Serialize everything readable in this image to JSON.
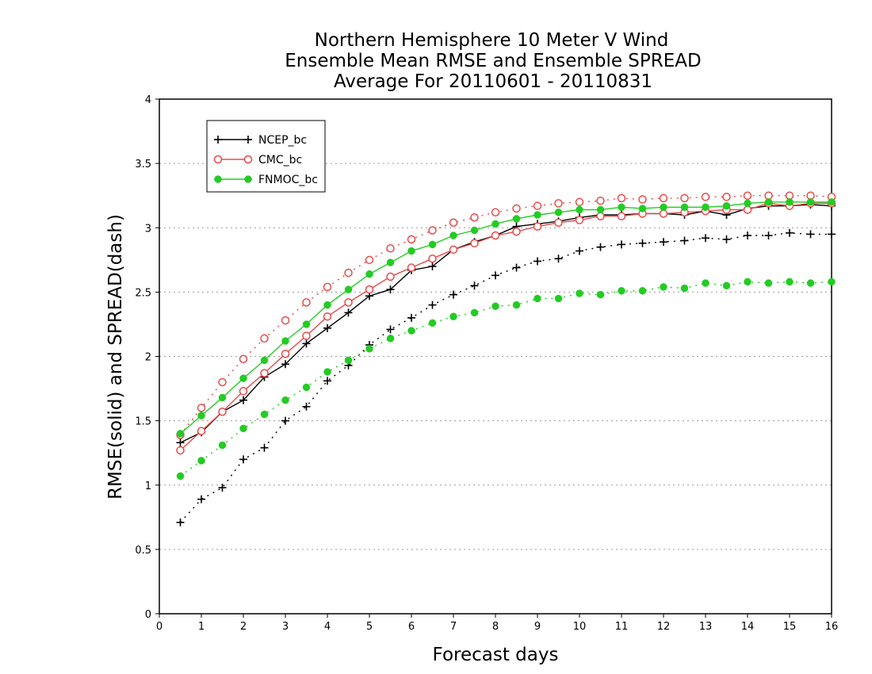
{
  "chart_data": {
    "type": "line",
    "title_lines": [
      "Northern Hemisphere 10 Meter V Wind",
      "Ensemble Mean RMSE and Ensemble SPREAD",
      "Average For 20110601 - 20110831"
    ],
    "xlabel": "Forecast days",
    "ylabel": "RMSE(solid) and SPREAD(dash)",
    "xlim": [
      0,
      16
    ],
    "ylim": [
      0,
      4
    ],
    "xticks": [
      0,
      1,
      2,
      3,
      4,
      5,
      6,
      7,
      8,
      9,
      10,
      11,
      12,
      13,
      14,
      15,
      16
    ],
    "yticks": [
      0,
      0.5,
      1,
      1.5,
      2,
      2.5,
      3,
      3.5,
      4
    ],
    "grid": "horizontal-dotted",
    "legend_position": "top-left",
    "x": [
      0.5,
      1,
      1.5,
      2,
      2.5,
      3,
      3.5,
      4,
      4.5,
      5,
      5.5,
      6,
      6.5,
      7,
      7.5,
      8,
      8.5,
      9,
      9.5,
      10,
      10.5,
      11,
      11.5,
      12,
      12.5,
      13,
      13.5,
      14,
      14.5,
      15,
      15.5,
      16
    ],
    "series": [
      {
        "name": "NCEP_bc",
        "color": "#000000",
        "marker": "plus",
        "rmse": [
          1.33,
          1.41,
          1.57,
          1.66,
          1.84,
          1.94,
          2.1,
          2.22,
          2.34,
          2.47,
          2.52,
          2.67,
          2.7,
          2.83,
          2.89,
          2.94,
          3.01,
          3.03,
          3.05,
          3.08,
          3.1,
          3.1,
          3.11,
          3.11,
          3.1,
          3.13,
          3.1,
          3.15,
          3.17,
          3.17,
          3.18,
          3.17
        ],
        "spread": [
          0.71,
          0.89,
          0.98,
          1.2,
          1.29,
          1.5,
          1.61,
          1.81,
          1.93,
          2.09,
          2.21,
          2.3,
          2.4,
          2.48,
          2.55,
          2.63,
          2.69,
          2.74,
          2.76,
          2.82,
          2.85,
          2.87,
          2.88,
          2.89,
          2.9,
          2.92,
          2.91,
          2.94,
          2.94,
          2.96,
          2.95,
          2.95
        ]
      },
      {
        "name": "CMC_bc",
        "color": "#e84a4a",
        "marker": "open-circle",
        "rmse": [
          1.27,
          1.42,
          1.57,
          1.73,
          1.87,
          2.02,
          2.16,
          2.31,
          2.42,
          2.52,
          2.62,
          2.69,
          2.76,
          2.83,
          2.88,
          2.94,
          2.97,
          3.01,
          3.04,
          3.06,
          3.09,
          3.09,
          3.11,
          3.11,
          3.12,
          3.13,
          3.14,
          3.14,
          3.19,
          3.17,
          3.19,
          3.19
        ],
        "spread": [
          1.39,
          1.6,
          1.8,
          1.98,
          2.14,
          2.28,
          2.42,
          2.54,
          2.65,
          2.75,
          2.84,
          2.91,
          2.98,
          3.04,
          3.08,
          3.12,
          3.15,
          3.17,
          3.19,
          3.2,
          3.21,
          3.23,
          3.22,
          3.23,
          3.23,
          3.24,
          3.24,
          3.25,
          3.25,
          3.25,
          3.25,
          3.24
        ]
      },
      {
        "name": "FNMOC_bc",
        "color": "#22cc22",
        "marker": "filled-circle",
        "rmse": [
          1.4,
          1.54,
          1.68,
          1.83,
          1.97,
          2.12,
          2.25,
          2.4,
          2.52,
          2.64,
          2.73,
          2.82,
          2.87,
          2.94,
          2.98,
          3.03,
          3.07,
          3.1,
          3.12,
          3.14,
          3.14,
          3.16,
          3.15,
          3.16,
          3.16,
          3.16,
          3.17,
          3.19,
          3.2,
          3.2,
          3.2,
          3.2
        ],
        "spread": [
          1.07,
          1.19,
          1.31,
          1.44,
          1.55,
          1.66,
          1.76,
          1.88,
          1.97,
          2.06,
          2.14,
          2.2,
          2.26,
          2.31,
          2.34,
          2.39,
          2.4,
          2.45,
          2.45,
          2.49,
          2.48,
          2.51,
          2.51,
          2.54,
          2.53,
          2.57,
          2.55,
          2.58,
          2.57,
          2.58,
          2.57,
          2.58
        ]
      }
    ]
  }
}
